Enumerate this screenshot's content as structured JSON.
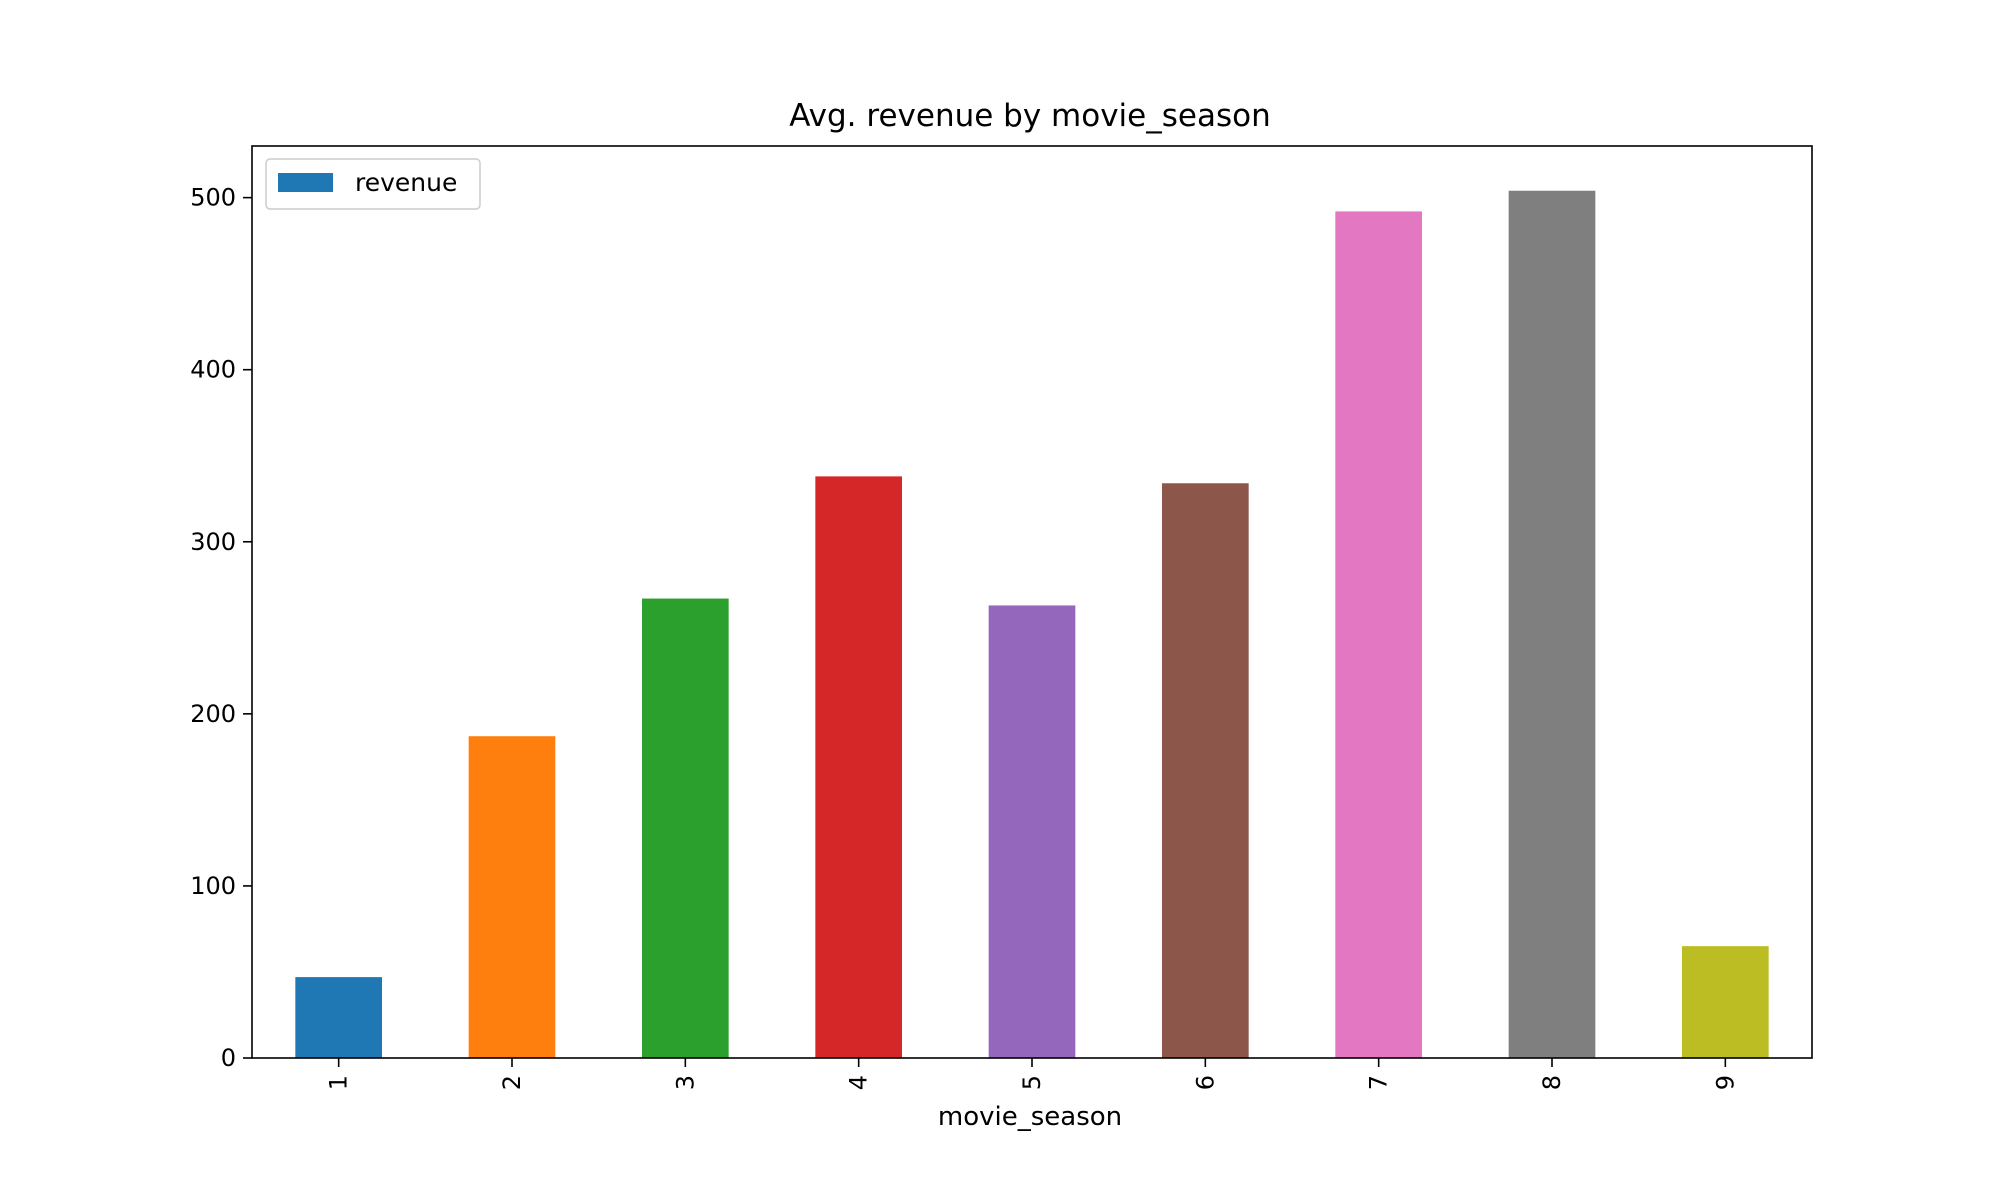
{
  "chart_data": {
    "type": "bar",
    "title": "Avg. revenue by movie_season",
    "xlabel": "movie_season",
    "ylabel": "",
    "categories": [
      "1",
      "2",
      "3",
      "4",
      "5",
      "6",
      "7",
      "8",
      "9"
    ],
    "series": [
      {
        "name": "revenue",
        "values": [
          47,
          187,
          267,
          338,
          263,
          334,
          492,
          504,
          65
        ]
      }
    ],
    "bar_colors": [
      "#1f77b4",
      "#ff7f0e",
      "#2ca02c",
      "#d62728",
      "#9467bd",
      "#8c564b",
      "#e377c2",
      "#7f7f7f",
      "#bcbd22"
    ],
    "legend_color": "#1f77b4",
    "ylim": [
      0,
      530
    ],
    "yticks": [
      0,
      100,
      200,
      300,
      400,
      500
    ],
    "xtick_rotation": "vertical",
    "grid": false,
    "legend_position": "top-left"
  }
}
